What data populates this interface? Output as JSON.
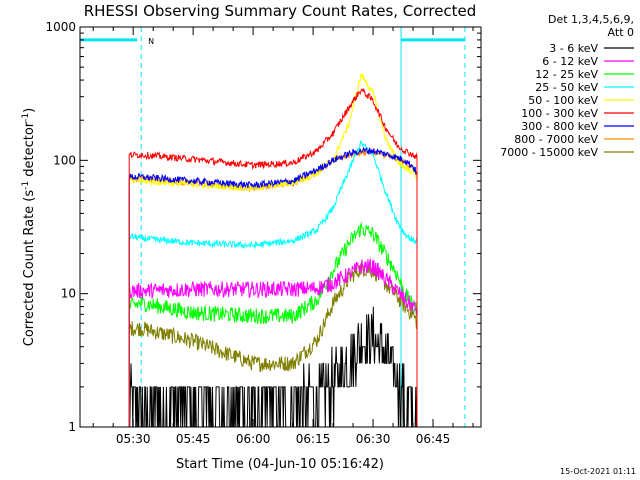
{
  "chart_data": {
    "type": "line",
    "title": "RHESSI Observing Summary Count Rates, Corrected",
    "xlabel": "Start Time (04-Jun-10 05:16:42)",
    "ylabel": "Corrected Count Rate (s",
    "ylabel_sup": "-1",
    "ylabel_mid": " detector",
    "ylabel_tail": ")",
    "yscale": "log",
    "ylim": [
      1,
      1000
    ],
    "xlim": [
      "05:16:42",
      "06:57:00"
    ],
    "y_ticks": [
      {
        "value": 1,
        "label": "1"
      },
      {
        "value": 10,
        "label": "10"
      },
      {
        "value": 100,
        "label": "100"
      },
      {
        "value": 1000,
        "label": "1000"
      }
    ],
    "x_ticks": [
      {
        "time": "05:30",
        "label": "05:30"
      },
      {
        "time": "05:45",
        "label": "05:45"
      },
      {
        "time": "06:00",
        "label": "06:00"
      },
      {
        "time": "06:15",
        "label": "06:15"
      },
      {
        "time": "06:30",
        "label": "06:30"
      },
      {
        "time": "06:45",
        "label": "06:45"
      }
    ],
    "legend_header": [
      "Det 1,3,4,5,6,9,",
      "Att 0"
    ],
    "legend_placement": "right",
    "footer_timestamp": "15-Oct-2021 01:11",
    "night_flag_label": "N",
    "data_start": "05:29:00",
    "data_end": "06:41:00",
    "series": [
      {
        "name": "3 - 6 keV",
        "color": "#000000",
        "x": [
          "05:29",
          "05:32",
          "05:45",
          "06:00",
          "06:10",
          "06:16",
          "06:20",
          "06:24",
          "06:27",
          "06:30",
          "06:33",
          "06:36",
          "06:38",
          "06:40",
          "06:41"
        ],
        "values": [
          1.8,
          1.5,
          1.5,
          1.5,
          1.5,
          1.7,
          2.2,
          3.2,
          4.5,
          4.8,
          3.6,
          2.4,
          1.6,
          1.2,
          1
        ]
      },
      {
        "name": "6 - 12 keV",
        "color": "#ff00ff",
        "x": [
          "05:29",
          "05:32",
          "05:45",
          "06:00",
          "06:10",
          "06:16",
          "06:20",
          "06:24",
          "06:27",
          "06:30",
          "06:33",
          "06:36",
          "06:38",
          "06:40",
          "06:41"
        ],
        "values": [
          10.5,
          10.5,
          10.8,
          10.8,
          10.8,
          11,
          12,
          14,
          16,
          16,
          13,
          10.5,
          9,
          8,
          7.5
        ]
      },
      {
        "name": "12 - 25 keV",
        "color": "#00ff00",
        "x": [
          "05:29",
          "05:32",
          "05:45",
          "06:00",
          "06:10",
          "06:16",
          "06:20",
          "06:24",
          "06:27",
          "06:30",
          "06:33",
          "06:36",
          "06:38",
          "06:40",
          "06:41"
        ],
        "values": [
          8,
          8.5,
          7.2,
          6.8,
          6.8,
          9,
          15,
          24,
          31,
          28,
          20,
          14,
          10,
          8,
          7.5
        ]
      },
      {
        "name": "25 - 50 keV",
        "color": "#00ffff",
        "x": [
          "05:29",
          "05:32",
          "05:45",
          "06:00",
          "06:10",
          "06:16",
          "06:20",
          "06:24",
          "06:27",
          "06:30",
          "06:33",
          "06:36",
          "06:38",
          "06:40",
          "06:41"
        ],
        "values": [
          27,
          26,
          24,
          23,
          25,
          30,
          44,
          85,
          135,
          110,
          60,
          35,
          28,
          25,
          25
        ]
      },
      {
        "name": "50 - 100 keV",
        "color": "#ffff00",
        "x": [
          "05:29",
          "05:32",
          "05:45",
          "06:00",
          "06:10",
          "06:16",
          "06:20",
          "06:24",
          "06:27",
          "06:30",
          "06:33",
          "06:36",
          "06:38",
          "06:40",
          "06:41"
        ],
        "values": [
          70,
          70,
          66,
          62,
          68,
          80,
          100,
          190,
          440,
          320,
          150,
          100,
          88,
          82,
          75
        ]
      },
      {
        "name": "100 - 300 keV",
        "color": "#ff0000",
        "x": [
          "05:29",
          "05:32",
          "05:45",
          "06:00",
          "06:10",
          "06:16",
          "06:20",
          "06:24",
          "06:27",
          "06:30",
          "06:33",
          "06:36",
          "06:38",
          "06:40",
          "06:41"
        ],
        "values": [
          110,
          110,
          102,
          92,
          96,
          118,
          160,
          250,
          340,
          280,
          180,
          130,
          118,
          110,
          105
        ]
      },
      {
        "name": "300 - 800 keV",
        "color": "#0000ff",
        "x": [
          "05:29",
          "05:32",
          "05:45",
          "06:00",
          "06:10",
          "06:16",
          "06:20",
          "06:24",
          "06:27",
          "06:30",
          "06:33",
          "06:36",
          "06:38",
          "06:40",
          "06:41"
        ],
        "values": [
          75,
          75,
          70,
          65,
          70,
          85,
          100,
          112,
          118,
          118,
          112,
          105,
          100,
          90,
          80
        ]
      },
      {
        "name": "800 - 7000 keV",
        "color": "#ff8c00",
        "x": [
          "05:29",
          "05:32",
          "05:45",
          "06:00",
          "06:10",
          "06:16",
          "06:20",
          "06:24",
          "06:27",
          "06:30",
          "06:33",
          "06:36",
          "06:38",
          "06:40",
          "06:41"
        ],
        "values": [
          73,
          73,
          68,
          62,
          68,
          82,
          100,
          110,
          115,
          115,
          110,
          102,
          96,
          88,
          78
        ]
      },
      {
        "name": "7000 - 15000 keV",
        "color": "#808000",
        "x": [
          "05:29",
          "05:32",
          "05:45",
          "06:00",
          "06:10",
          "06:16",
          "06:20",
          "06:24",
          "06:27",
          "06:30",
          "06:33",
          "06:36",
          "06:38",
          "06:40",
          "06:41"
        ],
        "values": [
          5.5,
          5.5,
          4.4,
          3,
          3,
          4.5,
          8.5,
          13,
          15.5,
          15,
          12,
          9.5,
          8,
          7,
          6
        ]
      }
    ]
  }
}
